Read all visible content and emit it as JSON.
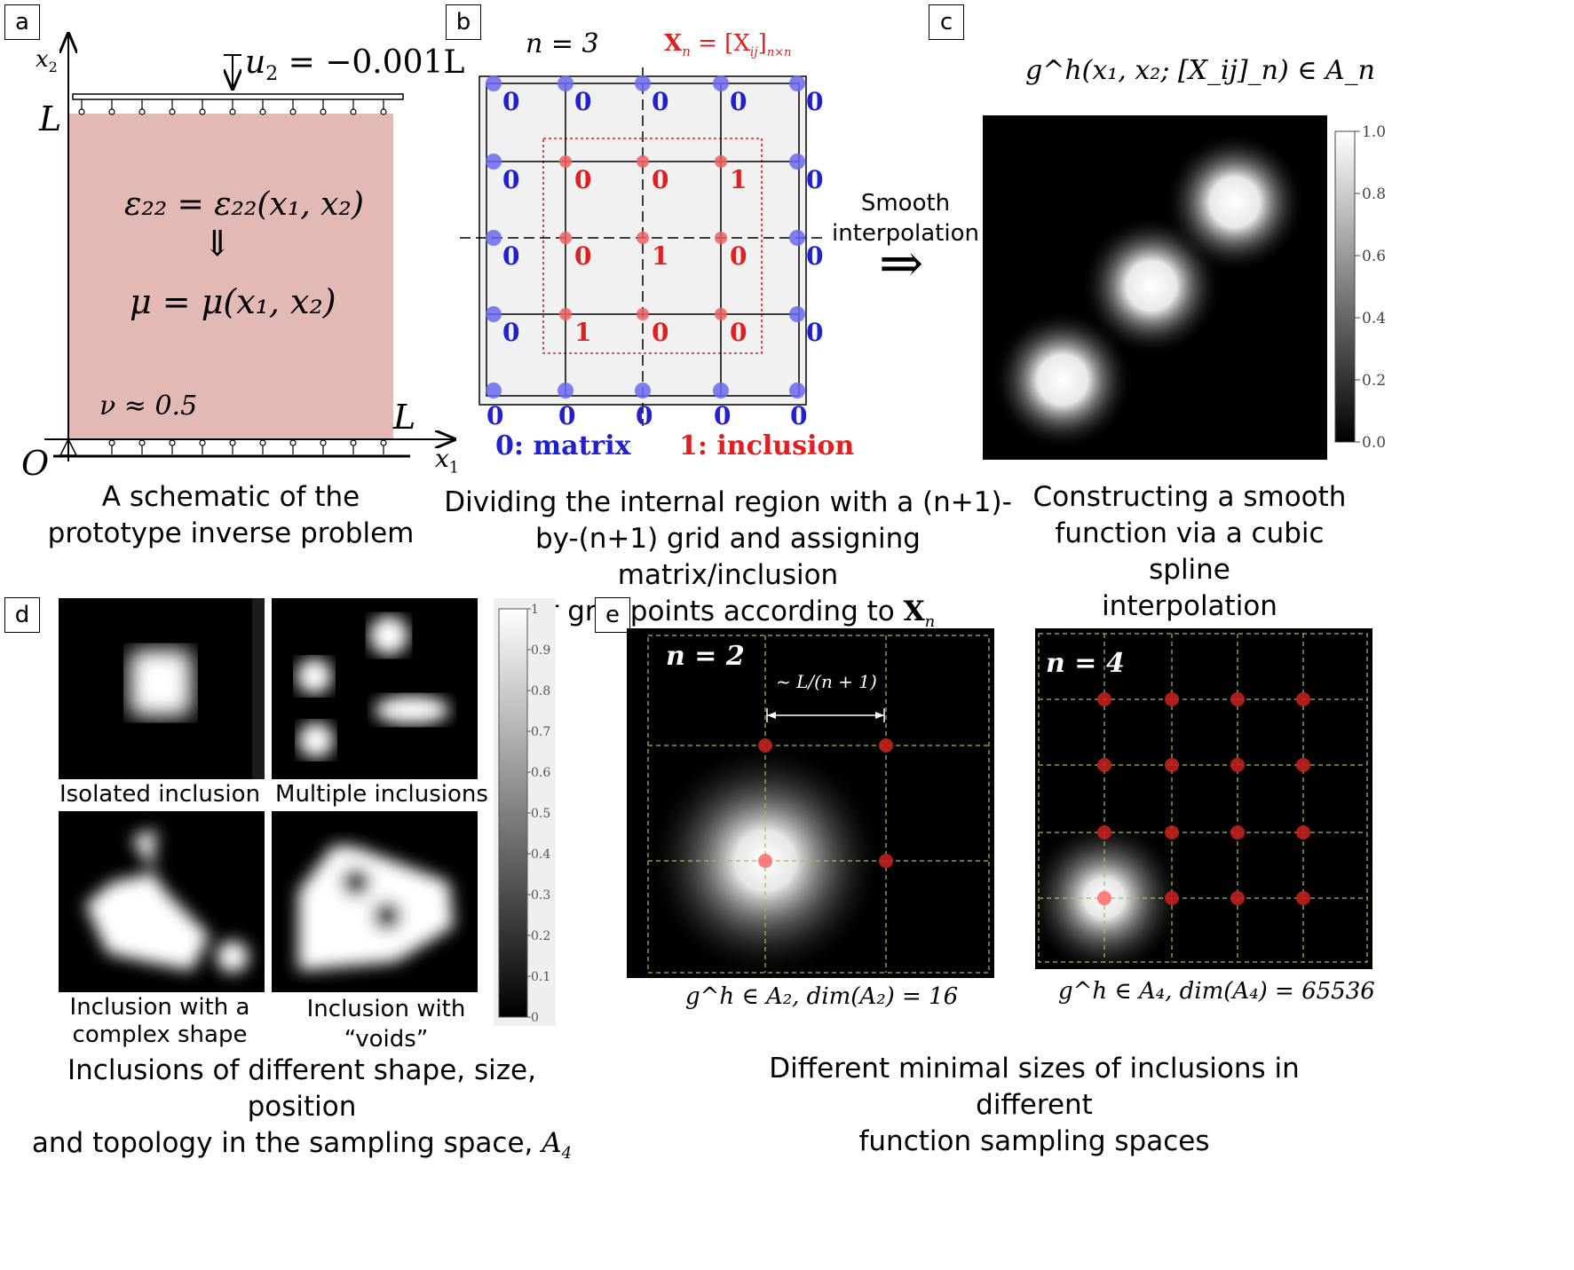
{
  "panels": {
    "a": {
      "label": "a",
      "axis_x": "x",
      "axis_x_sub": "1",
      "axis_y": "x",
      "axis_y_sub": "2",
      "origin": "O",
      "length_top": "L",
      "length_right": "L",
      "displacement": "u",
      "displacement_sub": "2",
      "displacement_value": " = −0.001L",
      "eq1": "ε₂₂ = ε₂₂(x₁, x₂)",
      "arrow": "⇓",
      "eq2": "μ = μ(x₁, x₂)",
      "poisson": "ν ≈ 0.5",
      "caption_line1": "A schematic of the",
      "caption_line2": "prototype inverse problem",
      "region_color": "#e3b9b6"
    },
    "b": {
      "label": "b",
      "n_label": "n = 3",
      "matrix_eq": "X",
      "matrix_eq_sub": "n",
      "matrix_eq_rhs": " = [X",
      "matrix_eq_rhs_sub": "ij",
      "matrix_eq_rhs_end": "]",
      "matrix_eq_size": "n×n",
      "outer_values": [
        "0",
        "0",
        "0",
        "0",
        "0",
        "0",
        "0",
        "0",
        "0",
        "0",
        "0",
        "0",
        "0",
        "0",
        "0",
        "0",
        "0",
        "0",
        "0",
        "0"
      ],
      "inner_values": [
        [
          "0",
          "0",
          "1"
        ],
        [
          "0",
          "1",
          "0"
        ],
        [
          "1",
          "0",
          "0"
        ]
      ],
      "legend_matrix": "0: matrix",
      "legend_inclusion": "1: inclusion",
      "caption_line1": "Dividing the internal region with a (n+1)-",
      "caption_line2": "by-(n+1) grid and assigning matrix/inclusion",
      "caption_line3": "for grid points according to",
      "caption_symbol": "X",
      "caption_symbol_sub": "n",
      "blue": "#2020d0",
      "red": "#e02020"
    },
    "arrow": {
      "line1": "Smooth",
      "line2": "interpolation",
      "symbol": "⇒"
    },
    "c": {
      "label": "c",
      "title": "g^h(x₁, x₂; [X_ij]_n) ∈ A_n",
      "colorbar_ticks": [
        "1.0",
        "0.8",
        "0.6",
        "0.4",
        "0.2",
        "0.0"
      ],
      "caption_line1": "Constructing a smooth",
      "caption_line2": "function  via a cubic spline",
      "caption_line3": "interpolation"
    },
    "d": {
      "label": "d",
      "img_labels": [
        "Isolated inclusion",
        "Multiple inclusions",
        "Inclusion with a",
        "complex shape",
        "Inclusion with “voids”"
      ],
      "colorbar_ticks": [
        "1",
        "0.9",
        "0.8",
        "0.7",
        "0.6",
        "0.5",
        "0.4",
        "0.3",
        "0.2",
        "0.1",
        "0"
      ],
      "caption_line1": "Inclusions of different shape, size, position",
      "caption_line2": "and topology in the sampling space,",
      "caption_symbol": "A",
      "caption_symbol_sub": "4"
    },
    "e": {
      "label": "e",
      "left_n": "n = 2",
      "spacing": "~ L/(n + 1)",
      "left_caption": "g^h ∈ A₂, dim(A₂) = 16",
      "right_n": "n = 4",
      "right_caption": "g^h ∈ A₄, dim(A₄) = 65536",
      "caption_line1": "Different minimal sizes of inclusions in different",
      "caption_line2": "function sampling spaces",
      "grid_color": "#9ec05a",
      "point_color": "#c0201c"
    }
  }
}
